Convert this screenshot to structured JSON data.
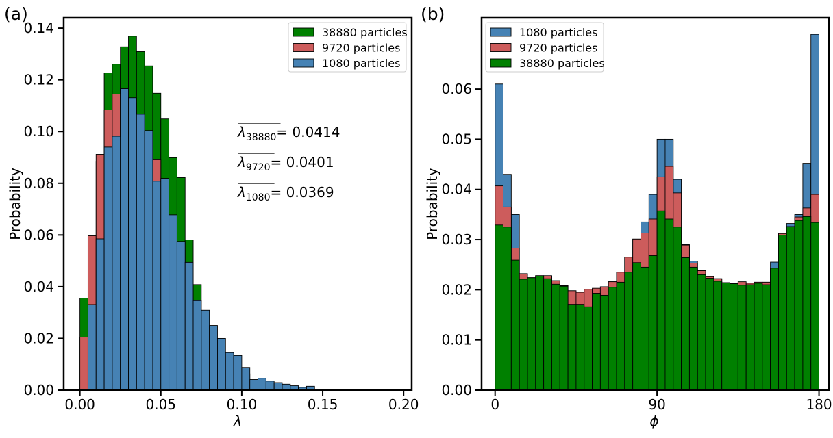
{
  "chart_data": [
    {
      "type": "bar",
      "panel_label": "(a)",
      "xlabel": "λ",
      "ylabel": "Probability",
      "xlim": [
        -0.01,
        0.205
      ],
      "ylim": [
        0,
        0.144
      ],
      "bin_width": 0.005,
      "grid": false,
      "legend_position": "top-right",
      "xticks": [
        0.0,
        0.05,
        0.1,
        0.15,
        0.2
      ],
      "xtick_labels": [
        "0.00",
        "0.05",
        "0.10",
        "0.15",
        "0.20"
      ],
      "yticks": [
        0.0,
        0.02,
        0.04,
        0.06,
        0.08,
        0.1,
        0.12,
        0.14
      ],
      "ytick_labels": [
        "0.00",
        "0.02",
        "0.04",
        "0.06",
        "0.08",
        "0.10",
        "0.12",
        "0.14"
      ],
      "legend": [
        "38880 particles",
        "9720 particles",
        "1080 particles"
      ],
      "annotations": [
        {
          "subscript": "38880",
          "value": "= 0.0414"
        },
        {
          "subscript": "9720",
          "value": "= 0.0401"
        },
        {
          "subscript": "1080",
          "value": "= 0.0369"
        }
      ],
      "series": [
        {
          "name": "38880 particles",
          "color": "#008000",
          "x_start": [
            0.0,
            0.005,
            0.01,
            0.015,
            0.02,
            0.025,
            0.03,
            0.035,
            0.04,
            0.045,
            0.05,
            0.055,
            0.06,
            0.065,
            0.07,
            0.075,
            0.08,
            0.085,
            0.09,
            0.095,
            0.1,
            0.105,
            0.11,
            0.115,
            0.12,
            0.125,
            0.13,
            0.135,
            0.14,
            0.145
          ],
          "values": [
            0.0356,
            0.0593,
            0.0885,
            0.1227,
            0.1261,
            0.1328,
            0.1369,
            0.1309,
            0.1254,
            0.1148,
            0.1049,
            0.0899,
            0.0822,
            0.0581,
            0.0408,
            0.0263,
            0.0163,
            0.0105,
            0.0105,
            0.0063,
            0.0063,
            0.0032,
            0.0021,
            0.0012,
            0.0007,
            0.0005,
            0.0004,
            0.0002,
            0.0001,
            0.0001
          ]
        },
        {
          "name": "9720 particles",
          "color": "#cd5c5c",
          "x_start": [
            0.0,
            0.005,
            0.01,
            0.015,
            0.02,
            0.025,
            0.03,
            0.035,
            0.04,
            0.045,
            0.05,
            0.055,
            0.06,
            0.065,
            0.07,
            0.075,
            0.08,
            0.085,
            0.09,
            0.095,
            0.1,
            0.105,
            0.11,
            0.115,
            0.12,
            0.125,
            0.13,
            0.135,
            0.14,
            0.145
          ],
          "values": [
            0.0205,
            0.0597,
            0.0912,
            0.1084,
            0.1145,
            0.1162,
            0.1112,
            0.1057,
            0.1004,
            0.0891,
            0.0688,
            0.0496,
            0.0408,
            0.0275,
            0.0206,
            0.0158,
            0.0112,
            0.0085,
            0.0078,
            0.0055,
            0.0042,
            0.0032,
            0.0022,
            0.0015,
            0.0011,
            0.0008,
            0.0006,
            0.0004,
            0.0003,
            0.0002
          ]
        },
        {
          "name": "1080 particles",
          "color": "#4682b4",
          "x_start": [
            0.0,
            0.005,
            0.01,
            0.015,
            0.02,
            0.025,
            0.03,
            0.035,
            0.04,
            0.045,
            0.05,
            0.055,
            0.06,
            0.065,
            0.07,
            0.075,
            0.08,
            0.085,
            0.09,
            0.095,
            0.1,
            0.105,
            0.11,
            0.115,
            0.12,
            0.125,
            0.13,
            0.135,
            0.14
          ],
          "values": [
            0.0,
            0.0331,
            0.0585,
            0.094,
            0.0982,
            0.1166,
            0.1131,
            0.1067,
            0.1003,
            0.0808,
            0.0819,
            0.0678,
            0.0575,
            0.0494,
            0.0346,
            0.0309,
            0.025,
            0.02,
            0.0145,
            0.0134,
            0.0088,
            0.0041,
            0.0046,
            0.0035,
            0.0029,
            0.0023,
            0.0017,
            0.0011,
            0.0015
          ]
        }
      ]
    },
    {
      "type": "bar",
      "panel_label": "(b)",
      "xlabel": "ϕ",
      "ylabel": "Probability",
      "xlim": [
        -7.5,
        185.5
      ],
      "ylim": [
        0,
        0.0742
      ],
      "bin_width": 4.5,
      "grid": false,
      "legend_position": "top-left",
      "xticks": [
        0,
        90,
        180
      ],
      "xtick_labels": [
        "0",
        "90",
        "180"
      ],
      "yticks": [
        0.0,
        0.01,
        0.02,
        0.03,
        0.04,
        0.05,
        0.06
      ],
      "ytick_labels": [
        "0.00",
        "0.01",
        "0.02",
        "0.03",
        "0.04",
        "0.05",
        "0.06"
      ],
      "legend": [
        "1080 particles",
        "9720 particles",
        "38880 particles"
      ],
      "series": [
        {
          "name": "1080 particles",
          "color": "#4682b4",
          "x_start": [
            0,
            4.5,
            9,
            13.5,
            18,
            22.5,
            27,
            31.5,
            36,
            40.5,
            45,
            49.5,
            54,
            58.5,
            63,
            67.5,
            72,
            76.5,
            81,
            85.5,
            90,
            94.5,
            99,
            103.5,
            108,
            112.5,
            117,
            121.5,
            126,
            130.5,
            135,
            139.5,
            144,
            148.5,
            153,
            157.5,
            162,
            166.5,
            171,
            175.5
          ],
          "values": [
            0.061,
            0.043,
            0.035,
            0.0232,
            0.0224,
            0.0228,
            0.0228,
            0.0218,
            0.0208,
            0.0198,
            0.0195,
            0.0201,
            0.0199,
            0.0206,
            0.0216,
            0.0235,
            0.0265,
            0.0301,
            0.0335,
            0.039,
            0.05,
            0.05,
            0.042,
            0.029,
            0.0257,
            0.0238,
            0.0226,
            0.0222,
            0.0214,
            0.0212,
            0.0214,
            0.0213,
            0.0215,
            0.0215,
            0.0255,
            0.0312,
            0.0332,
            0.035,
            0.0452,
            0.0709
          ]
        },
        {
          "name": "9720 particles",
          "color": "#cd5c5c",
          "x_start": [
            0,
            4.5,
            9,
            13.5,
            18,
            22.5,
            27,
            31.5,
            36,
            40.5,
            45,
            49.5,
            54,
            58.5,
            63,
            67.5,
            72,
            76.5,
            81,
            85.5,
            90,
            94.5,
            99,
            103.5,
            108,
            112.5,
            117,
            121.5,
            126,
            130.5,
            135,
            139.5,
            144,
            148.5,
            153,
            157.5,
            162,
            166.5,
            171,
            175.5
          ],
          "values": [
            0.0407,
            0.0365,
            0.0283,
            0.0232,
            0.0224,
            0.0228,
            0.0228,
            0.0218,
            0.0208,
            0.0198,
            0.0195,
            0.0201,
            0.0203,
            0.0206,
            0.0216,
            0.0235,
            0.0265,
            0.0301,
            0.0313,
            0.0341,
            0.0425,
            0.0446,
            0.0393,
            0.0289,
            0.0253,
            0.0238,
            0.0226,
            0.0222,
            0.0214,
            0.0212,
            0.0216,
            0.0213,
            0.0215,
            0.0215,
            0.0243,
            0.0312,
            0.0326,
            0.0345,
            0.0363,
            0.039
          ]
        },
        {
          "name": "38880 particles",
          "color": "#008000",
          "x_start": [
            0,
            4.5,
            9,
            13.5,
            18,
            22.5,
            27,
            31.5,
            36,
            40.5,
            45,
            49.5,
            54,
            58.5,
            63,
            67.5,
            72,
            76.5,
            81,
            85.5,
            90,
            94.5,
            99,
            103.5,
            108,
            112.5,
            117,
            121.5,
            126,
            130.5,
            135,
            139.5,
            144,
            148.5,
            153,
            157.5,
            162,
            166.5,
            171,
            175.5
          ],
          "values": [
            0.0329,
            0.0325,
            0.0259,
            0.0221,
            0.0224,
            0.0228,
            0.0222,
            0.0211,
            0.0207,
            0.0171,
            0.0171,
            0.0166,
            0.0193,
            0.0189,
            0.0205,
            0.0215,
            0.0235,
            0.0254,
            0.0245,
            0.0268,
            0.0357,
            0.0341,
            0.0325,
            0.0264,
            0.0245,
            0.023,
            0.0223,
            0.0217,
            0.0214,
            0.0212,
            0.0209,
            0.021,
            0.0213,
            0.021,
            0.0243,
            0.0309,
            0.0326,
            0.0338,
            0.0346,
            0.0334
          ]
        }
      ]
    }
  ]
}
